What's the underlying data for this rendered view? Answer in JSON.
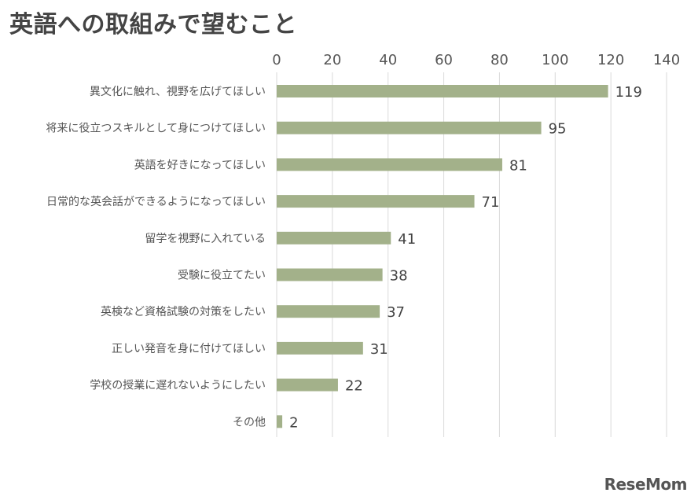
{
  "chart_data": {
    "type": "bar",
    "orientation": "horizontal",
    "title": "英語への取組みで望むこと",
    "categories": [
      "異文化に触れ、視野を広げてほしい",
      "将来に役立つスキルとして身につけてほしい",
      "英語を好きになってほしい",
      "日常的な英会話ができるようになってほしい",
      "留学を視野に入れている",
      "受験に役立てたい",
      "英検など資格試験の対策をしたい",
      "正しい発音を身に付けてほしい",
      "学校の授業に遅れないようにしたい",
      "その他"
    ],
    "values": [
      119,
      95,
      81,
      71,
      41,
      38,
      37,
      31,
      22,
      2
    ],
    "xlim": [
      0,
      140
    ],
    "xticks": [
      0,
      20,
      40,
      60,
      80,
      100,
      120,
      140
    ],
    "xaxis_position": "top",
    "grid": true,
    "bar_color": "#a3b18a",
    "data_labels": true,
    "legend": "none"
  },
  "watermark": {
    "text": "ReseMom"
  }
}
